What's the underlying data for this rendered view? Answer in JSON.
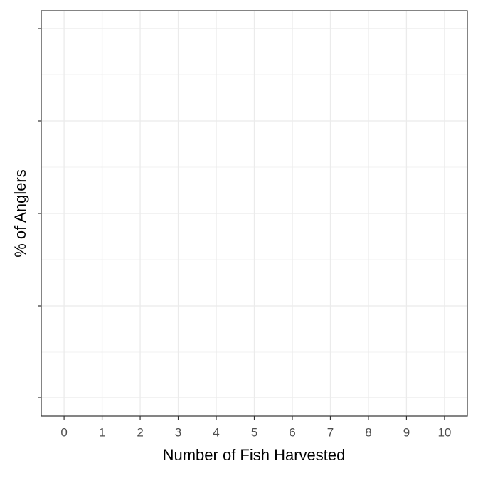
{
  "chart_data": {
    "type": "bar",
    "xlabel": "Number of Fish Harvested",
    "ylabel": "% of Anglers",
    "xlim": [
      -0.6,
      10.6
    ],
    "xticks": [
      0,
      1,
      2,
      3,
      4,
      5,
      6,
      7,
      8,
      9,
      10
    ],
    "grid": true
  }
}
